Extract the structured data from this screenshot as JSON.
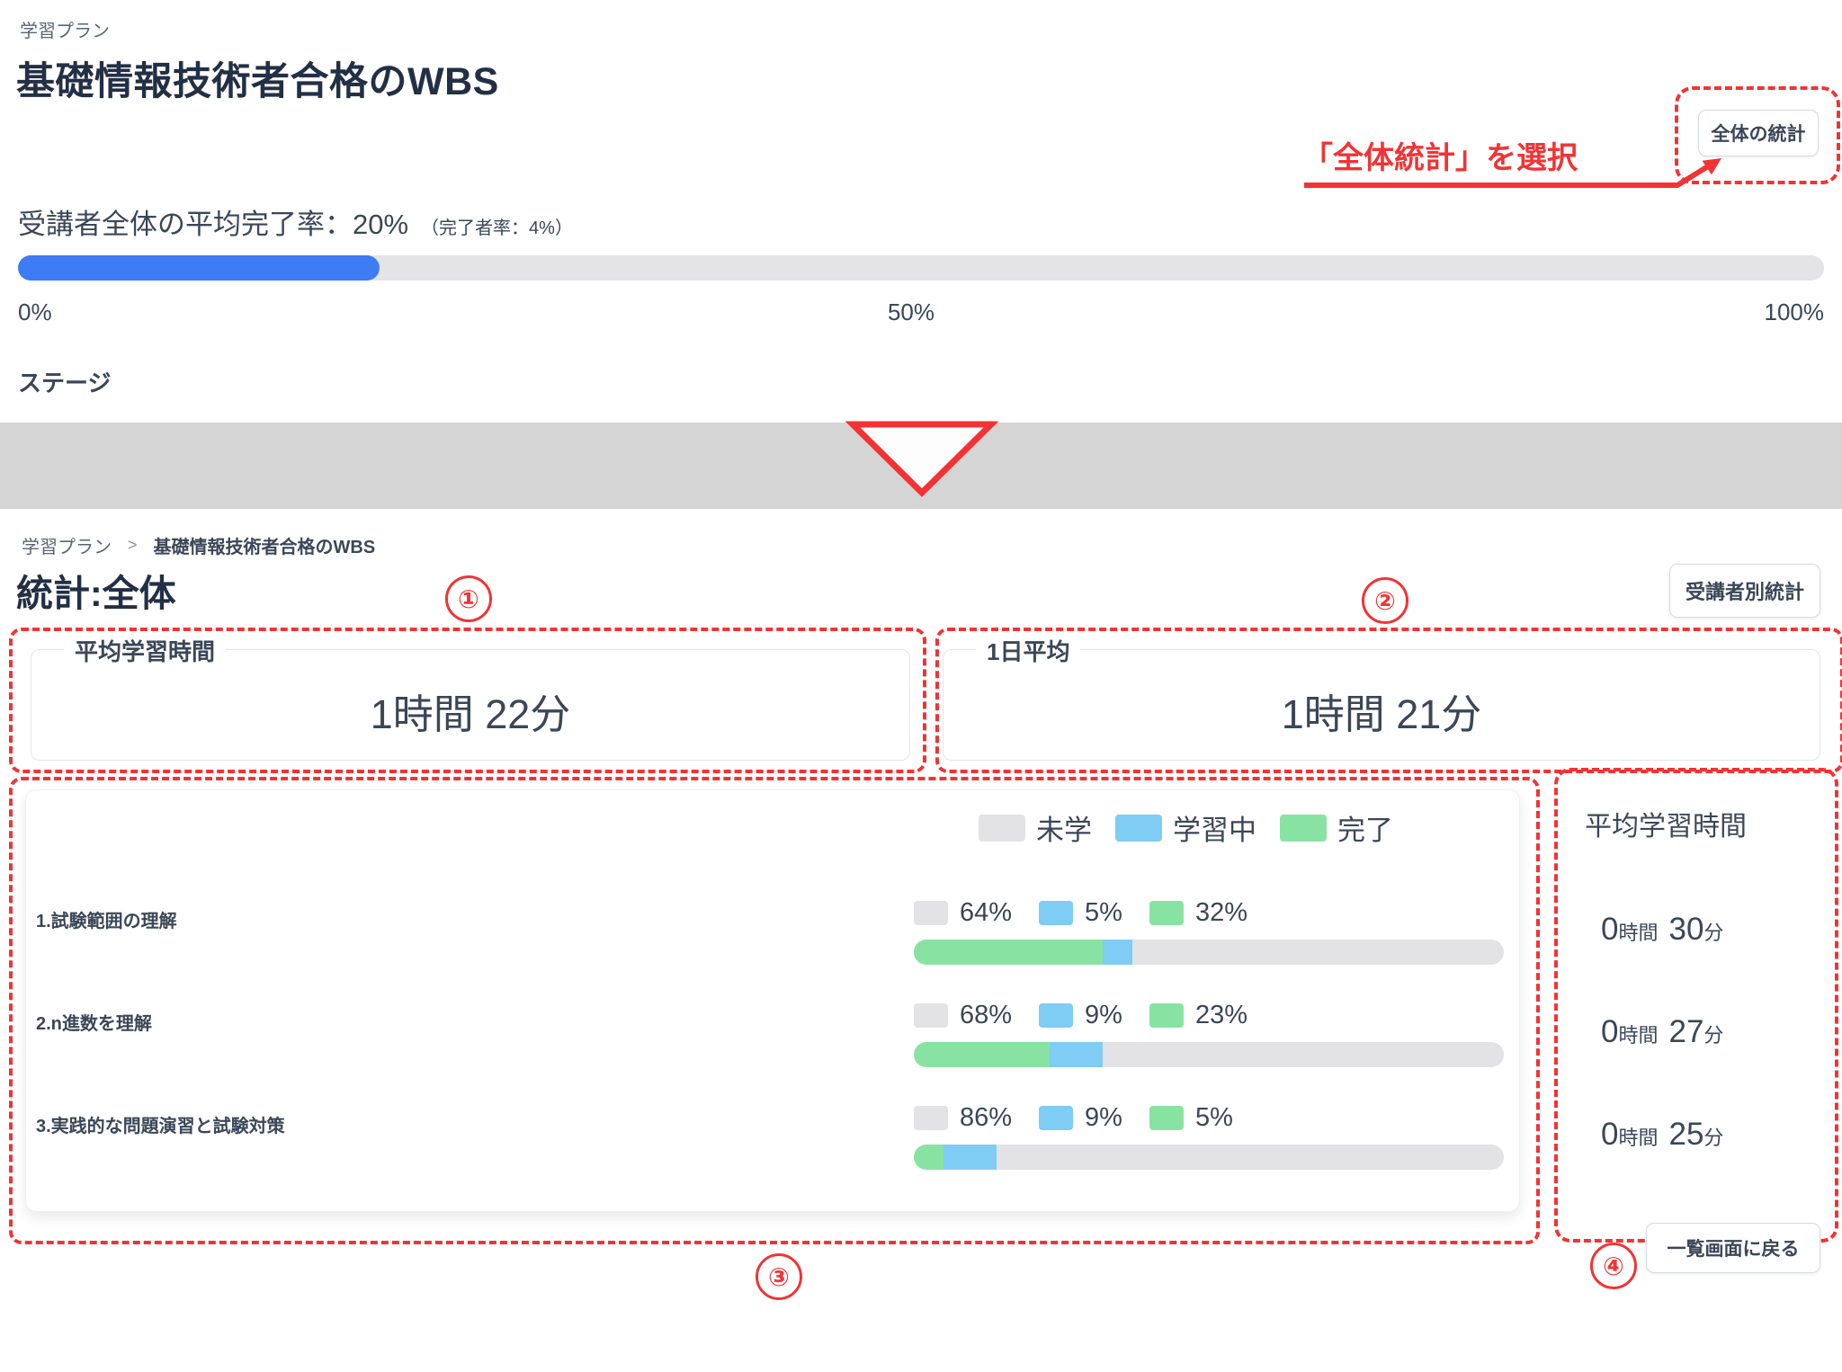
{
  "colors": {
    "accent_blue": "#3d7cf2",
    "track_gray": "#e4e4e6",
    "status_not_started": "#e3e3e5",
    "status_in_progress": "#7fccf4",
    "status_completed": "#88e3a3",
    "annotation_red": "#f23335",
    "band_gray": "#d5d5d6"
  },
  "top_screen": {
    "breadcrumb": "学習プラン",
    "title": "基礎情報技術者合格のWBS",
    "stats_button": "全体の統計",
    "annotation_label": "「全体統計」を選択",
    "completion_text": "受講者全体の平均完了率：20%",
    "completion_sub": "（完了者率：4%）",
    "progress_percent": 20,
    "scale_labels": [
      "0%",
      "50%",
      "100%"
    ],
    "stage_heading": "ステージ"
  },
  "detail_screen": {
    "breadcrumb": {
      "parent": "学習プラン",
      "separator": ">",
      "current": "基礎情報技術者合格のWBS"
    },
    "title": "統計:全体",
    "per_learner_button": "受講者別統計",
    "avg_study_card": {
      "label": "平均学習時間",
      "value": "1時間 22分"
    },
    "daily_avg_card": {
      "label": "1日平均",
      "value": "1時間 21分"
    },
    "legend": [
      {
        "label": "未学",
        "color": "#e3e3e5"
      },
      {
        "label": "学習中",
        "color": "#7fccf4"
      },
      {
        "label": "完了",
        "color": "#88e3a3"
      }
    ],
    "right_panel_title": "平均学習時間",
    "units": {
      "hour": "時間",
      "minute": "分"
    },
    "stages": [
      {
        "name": "1.試験範囲の理解",
        "not_started_pct": 64,
        "in_progress_pct": 5,
        "completed_pct": 32,
        "avg_hours": "0",
        "avg_minutes": "30"
      },
      {
        "name": "2.n進数を理解",
        "not_started_pct": 68,
        "in_progress_pct": 9,
        "completed_pct": 23,
        "avg_hours": "0",
        "avg_minutes": "27"
      },
      {
        "name": "3.実践的な問題演習と試験対策",
        "not_started_pct": 86,
        "in_progress_pct": 9,
        "completed_pct": 5,
        "avg_hours": "0",
        "avg_minutes": "25"
      }
    ],
    "back_button": "一覧画面に戻る"
  },
  "annotations": {
    "step1": "①",
    "step2": "②",
    "step3": "③",
    "step4": "④"
  },
  "chart_data": {
    "type": "bar",
    "stacked": true,
    "categories": [
      "1.試験範囲の理解",
      "2.n進数を理解",
      "3.実践的な問題演習と試験対策"
    ],
    "series": [
      {
        "name": "未学",
        "values": [
          64,
          68,
          86
        ],
        "color": "#e3e3e5"
      },
      {
        "name": "学習中",
        "values": [
          5,
          9,
          9
        ],
        "color": "#7fccf4"
      },
      {
        "name": "完了",
        "values": [
          32,
          23,
          5
        ],
        "color": "#88e3a3"
      }
    ],
    "bar_order_left_to_right": [
      "完了",
      "学習中",
      "未学"
    ],
    "avg_study_time_per_stage": [
      "0時間 30分",
      "0時間 27分",
      "0時間 25分"
    ],
    "legend_position": "top-right",
    "xlim": [
      0,
      100
    ]
  }
}
